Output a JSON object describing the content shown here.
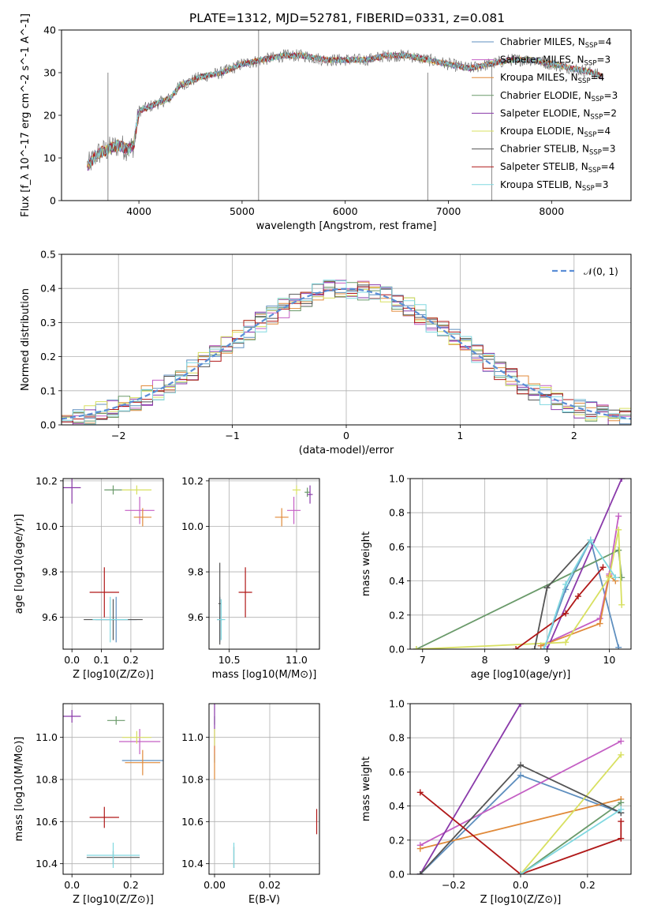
{
  "figure": {
    "title": "PLATE=1312, MJD=52781, FIBERID=0331, z=0.081"
  },
  "model_colors": [
    "#5f8fbf",
    "#c45fc4",
    "#e08a3a",
    "#6a9a6a",
    "#8a3aaa",
    "#d8e060",
    "#555555",
    "#b01818",
    "#80d8e0"
  ],
  "model_names": [
    "Chabrier MILES, N_SSP=4",
    "Salpeter MILES, N_SSP=3",
    "Kroupa MILES, N_SSP=4",
    "Chabrier ELODIE, N_SSP=3",
    "Salpeter ELODIE, N_SSP=2",
    "Kroupa ELODIE, N_SSP=4",
    "Chabrier STELIB, N_SSP=3",
    "Salpeter STELIB, N_SSP=4",
    "Kroupa STELIB, N_SSP=3"
  ],
  "chart_data": [
    {
      "id": "spectrum",
      "type": "line",
      "xlabel": "wavelength [Angstrom, rest frame]",
      "ylabel": "Flux [f_λ 10^-17 erg cm^-2 s^-1 A^-1]",
      "xlim": [
        3250,
        8770
      ],
      "ylim": [
        0,
        40
      ],
      "xticks": [
        4000,
        5000,
        6000,
        7000,
        8000
      ],
      "yticks": [
        0,
        10,
        20,
        30,
        40
      ],
      "grid": false,
      "legend_position": "top-right",
      "legend": [
        {
          "pre": "Chabrier MILES, N",
          "sub": "SSP",
          "post": "=4"
        },
        {
          "pre": "Salpeter MILES, N",
          "sub": "SSP",
          "post": "=3"
        },
        {
          "pre": "Kroupa MILES, N",
          "sub": "SSP",
          "post": "=4"
        },
        {
          "pre": "Chabrier ELODIE, N",
          "sub": "SSP",
          "post": "=3"
        },
        {
          "pre": "Salpeter ELODIE, N",
          "sub": "SSP",
          "post": "=2"
        },
        {
          "pre": "Kroupa ELODIE, N",
          "sub": "SSP",
          "post": "=4"
        },
        {
          "pre": "Chabrier STELIB, N",
          "sub": "SSP",
          "post": "=3"
        },
        {
          "pre": "Salpeter STELIB, N",
          "sub": "SSP",
          "post": "=4"
        },
        {
          "pre": "Kroupa STELIB, N",
          "sub": "SSP",
          "post": "=3"
        }
      ],
      "continuum": [
        [
          3500,
          8
        ],
        [
          3600,
          11
        ],
        [
          3700,
          12
        ],
        [
          3800,
          13
        ],
        [
          3900,
          12
        ],
        [
          3950,
          13
        ],
        [
          4000,
          21
        ],
        [
          4200,
          23
        ],
        [
          4300,
          24
        ],
        [
          4400,
          27
        ],
        [
          4600,
          29
        ],
        [
          4800,
          30
        ],
        [
          5000,
          32
        ],
        [
          5200,
          33
        ],
        [
          5400,
          34
        ],
        [
          5600,
          34
        ],
        [
          5800,
          33
        ],
        [
          6000,
          33
        ],
        [
          6200,
          33
        ],
        [
          6400,
          34
        ],
        [
          6600,
          34
        ],
        [
          6800,
          33
        ],
        [
          7000,
          32
        ],
        [
          7200,
          31
        ],
        [
          7400,
          32
        ],
        [
          7600,
          33
        ],
        [
          7800,
          33
        ],
        [
          8000,
          32
        ],
        [
          8200,
          31
        ],
        [
          8400,
          30
        ],
        [
          8500,
          29
        ]
      ],
      "spikes": [
        {
          "x": 3700,
          "y1": 0,
          "y2": 30
        },
        {
          "x": 5160,
          "y1": 0,
          "y2": 40
        },
        {
          "x": 6800,
          "y1": 0,
          "y2": 30
        },
        {
          "x": 7420,
          "y1": 0,
          "y2": 32
        }
      ]
    },
    {
      "id": "residuals",
      "type": "histogram",
      "xlabel": "(data-model)/error",
      "ylabel": "Normed distribution",
      "xlim": [
        -2.5,
        2.5
      ],
      "ylim": [
        0,
        0.5
      ],
      "xticks": [
        -2,
        -1,
        0,
        1,
        2
      ],
      "yticks": [
        0.0,
        0.1,
        0.2,
        0.3,
        0.4,
        0.5
      ],
      "grid": true,
      "legend_position": "top-right",
      "reference": {
        "name": "𝒩(0, 1)",
        "color": "#5b8ed6",
        "mu": 0,
        "sigma": 1
      },
      "bin_width": 0.1
    },
    {
      "id": "age_vs_Z",
      "type": "errorbar",
      "xlabel": "Z [log10(Z/Z⊙)]",
      "ylabel": "age [log10(age/yr)]",
      "xlim": [
        -0.03,
        0.31
      ],
      "ylim": [
        9.46,
        10.21
      ],
      "xticks": [
        0.0,
        0.1,
        0.2
      ],
      "yticks": [
        9.6,
        9.8,
        10.0,
        10.2
      ],
      "grid": true,
      "points": [
        {
          "model": 0,
          "x": 0.15,
          "y": 9.59,
          "xerr": 0.07,
          "yerr": 0.1
        },
        {
          "model": 1,
          "x": 0.23,
          "y": 10.07,
          "xerr": 0.05,
          "yerr": 0.06
        },
        {
          "model": 2,
          "x": 0.24,
          "y": 10.04,
          "xerr": 0.03,
          "yerr": 0.04
        },
        {
          "model": 3,
          "x": 0.14,
          "y": 10.16,
          "xerr": 0.03,
          "yerr": 0.02
        },
        {
          "model": 4,
          "x": 0.0,
          "y": 10.17,
          "xerr": 0.03,
          "yerr": 0.07
        },
        {
          "model": 5,
          "x": 0.22,
          "y": 10.16,
          "xerr": 0.05,
          "yerr": 0.02
        },
        {
          "model": 6,
          "x": 0.14,
          "y": 9.59,
          "xerr": 0.1,
          "yerr": 0.09
        },
        {
          "model": 7,
          "x": 0.11,
          "y": 9.71,
          "xerr": 0.05,
          "yerr": 0.11
        },
        {
          "model": 8,
          "x": 0.13,
          "y": 9.59,
          "xerr": 0.06,
          "yerr": 0.1
        }
      ]
    },
    {
      "id": "age_vs_mass",
      "type": "errorbar",
      "xlabel": "mass [log10(M/M⊙)]",
      "ylabel": "",
      "xlim": [
        10.35,
        11.17
      ],
      "ylim": [
        9.46,
        10.21
      ],
      "xticks": [
        10.5,
        11.0
      ],
      "yticks": [
        9.6,
        9.8,
        10.0,
        10.2
      ],
      "grid": true,
      "points": [
        {
          "model": 0,
          "x": 10.43,
          "y": 9.59,
          "xerr": 0.02,
          "yerr": 0.1
        },
        {
          "model": 1,
          "x": 10.98,
          "y": 10.07,
          "xerr": 0.05,
          "yerr": 0.06
        },
        {
          "model": 2,
          "x": 10.89,
          "y": 10.04,
          "xerr": 0.05,
          "yerr": 0.04
        },
        {
          "model": 3,
          "x": 11.08,
          "y": 10.15,
          "xerr": 0.02,
          "yerr": 0.02
        },
        {
          "model": 4,
          "x": 11.1,
          "y": 10.14,
          "xerr": 0.02,
          "yerr": 0.04
        },
        {
          "model": 5,
          "x": 11.0,
          "y": 10.16,
          "xerr": 0.03,
          "yerr": 0.02
        },
        {
          "model": 6,
          "x": 10.43,
          "y": 9.66,
          "xerr": 0.01,
          "yerr": 0.18
        },
        {
          "model": 7,
          "x": 10.62,
          "y": 9.71,
          "xerr": 0.05,
          "yerr": 0.11
        },
        {
          "model": 8,
          "x": 10.44,
          "y": 9.59,
          "xerr": 0.03,
          "yerr": 0.09
        }
      ]
    },
    {
      "id": "weight_vs_age",
      "type": "line",
      "xlabel": "age [log10(age/yr)]",
      "ylabel": "mass weight",
      "xlim": [
        6.8,
        10.35
      ],
      "ylim": [
        0,
        1
      ],
      "xticks": [
        7,
        8,
        9,
        10
      ],
      "yticks": [
        0.0,
        0.2,
        0.4,
        0.6,
        0.8,
        1.0
      ],
      "grid": true,
      "series": [
        {
          "model": 0,
          "x": [
            8.95,
            9.3,
            9.7,
            10.15
          ],
          "y": [
            0.0,
            0.35,
            0.64,
            0.01
          ]
        },
        {
          "model": 1,
          "x": [
            8.9,
            9.85,
            10.0,
            10.15
          ],
          "y": [
            0.02,
            0.18,
            0.44,
            0.78
          ]
        },
        {
          "model": 2,
          "x": [
            8.9,
            9.85,
            10.0,
            10.1
          ],
          "y": [
            0.02,
            0.15,
            0.43,
            0.4
          ]
        },
        {
          "model": 3,
          "x": [
            6.9,
            10.15,
            10.2
          ],
          "y": [
            0.0,
            0.58,
            0.42
          ]
        },
        {
          "model": 4,
          "x": [
            9.0,
            10.2
          ],
          "y": [
            0.0,
            1.0
          ]
        },
        {
          "model": 5,
          "x": [
            6.9,
            9.3,
            10.0,
            10.15,
            10.2
          ],
          "y": [
            0.0,
            0.04,
            0.42,
            0.7,
            0.26
          ]
        },
        {
          "model": 6,
          "x": [
            8.8,
            9.0,
            9.7
          ],
          "y": [
            0.0,
            0.36,
            0.64
          ]
        },
        {
          "model": 7,
          "x": [
            8.5,
            9.3,
            9.5,
            9.9
          ],
          "y": [
            0.0,
            0.21,
            0.31,
            0.48
          ]
        },
        {
          "model": 8,
          "x": [
            8.95,
            9.3,
            9.7,
            10.1
          ],
          "y": [
            0.0,
            0.38,
            0.64,
            0.42
          ]
        }
      ]
    },
    {
      "id": "mass_vs_Z",
      "type": "errorbar",
      "xlabel": "Z [log10(Z/Z⊙)]",
      "ylabel": "mass [log10(M/M⊙)]",
      "xlim": [
        -0.03,
        0.31
      ],
      "ylim": [
        10.35,
        11.16
      ],
      "xticks": [
        0.0,
        0.2
      ],
      "yticks": [
        10.4,
        10.6,
        10.8,
        11.0
      ],
      "grid": true,
      "points": [
        {
          "model": 0,
          "x": 0.24,
          "y": 10.89,
          "xerr": 0.07,
          "yerr": 0.0
        },
        {
          "model": 1,
          "x": 0.23,
          "y": 10.98,
          "xerr": 0.07,
          "yerr": 0.06
        },
        {
          "model": 2,
          "x": 0.24,
          "y": 10.88,
          "xerr": 0.06,
          "yerr": 0.06
        },
        {
          "model": 3,
          "x": 0.15,
          "y": 11.08,
          "xerr": 0.03,
          "yerr": 0.02
        },
        {
          "model": 4,
          "x": 0.0,
          "y": 11.1,
          "xerr": 0.03,
          "yerr": 0.03
        },
        {
          "model": 5,
          "x": 0.22,
          "y": 11.0,
          "xerr": 0.05,
          "yerr": 0.03
        },
        {
          "model": 6,
          "x": 0.14,
          "y": 10.43,
          "xerr": 0.09,
          "yerr": 0.03
        },
        {
          "model": 7,
          "x": 0.11,
          "y": 10.62,
          "xerr": 0.05,
          "yerr": 0.05
        },
        {
          "model": 8,
          "x": 0.14,
          "y": 10.44,
          "xerr": 0.09,
          "yerr": 0.06
        }
      ]
    },
    {
      "id": "mass_vs_ebv",
      "type": "errorbar",
      "xlabel": "E(B-V)",
      "ylabel": "",
      "xlim": [
        -0.002,
        0.038
      ],
      "ylim": [
        10.35,
        11.16
      ],
      "xticks": [
        0.0,
        0.02
      ],
      "yticks": [
        10.4,
        10.6,
        10.8,
        11.0
      ],
      "grid": true,
      "points": [
        {
          "model": 0,
          "x": 0.0,
          "y": 10.9,
          "xerr": 0.0,
          "yerr": 0.02
        },
        {
          "model": 1,
          "x": 0.0,
          "y": 10.98,
          "xerr": 0.0,
          "yerr": 0.06
        },
        {
          "model": 2,
          "x": 0.0,
          "y": 10.88,
          "xerr": 0.0,
          "yerr": 0.08
        },
        {
          "model": 3,
          "x": 0.0,
          "y": 11.08,
          "xerr": 0.0,
          "yerr": 0.02
        },
        {
          "model": 4,
          "x": 0.0,
          "y": 11.1,
          "xerr": 0.0,
          "yerr": 0.06
        },
        {
          "model": 5,
          "x": 0.0,
          "y": 11.0,
          "xerr": 0.0,
          "yerr": 0.04
        },
        {
          "model": 6,
          "x": 0.007,
          "y": 10.43,
          "xerr": 0.0,
          "yerr": 0.05
        },
        {
          "model": 7,
          "x": 0.037,
          "y": 10.6,
          "xerr": 0.0,
          "yerr": 0.06
        },
        {
          "model": 8,
          "x": 0.007,
          "y": 10.44,
          "xerr": 0.0,
          "yerr": 0.06
        }
      ]
    },
    {
      "id": "weight_vs_Z",
      "type": "line",
      "xlabel": "Z [log10(Z/Z⊙)]",
      "ylabel": "mass weight",
      "xlim": [
        -0.33,
        0.33
      ],
      "ylim": [
        0,
        1
      ],
      "xticks": [
        -0.2,
        0.0,
        0.2
      ],
      "yticks": [
        0.0,
        0.2,
        0.4,
        0.6,
        0.8,
        1.0
      ],
      "grid": true,
      "series": [
        {
          "model": 0,
          "x": [
            -0.3,
            0.0,
            0.3
          ],
          "y": [
            0.0,
            0.58,
            0.36
          ]
        },
        {
          "model": 1,
          "x": [
            -0.3,
            0.3
          ],
          "y": [
            0.17,
            0.78
          ]
        },
        {
          "model": 2,
          "x": [
            -0.3,
            0.3
          ],
          "y": [
            0.15,
            0.44
          ]
        },
        {
          "model": 3,
          "x": [
            0.0,
            0.3
          ],
          "y": [
            0.0,
            0.42
          ]
        },
        {
          "model": 4,
          "x": [
            -0.3,
            0.0
          ],
          "y": [
            0.0,
            1.0
          ]
        },
        {
          "model": 5,
          "x": [
            0.0,
            0.3
          ],
          "y": [
            0.0,
            0.7
          ]
        },
        {
          "model": 6,
          "x": [
            -0.3,
            0.0,
            0.3
          ],
          "y": [
            0.0,
            0.64,
            0.36
          ]
        },
        {
          "model": 7,
          "x": [
            -0.3,
            0.0,
            0.3,
            0.3
          ],
          "y": [
            0.48,
            0.0,
            0.21,
            0.31
          ]
        },
        {
          "model": 8,
          "x": [
            0.0,
            0.3
          ],
          "y": [
            0.0,
            0.38
          ]
        }
      ]
    }
  ]
}
